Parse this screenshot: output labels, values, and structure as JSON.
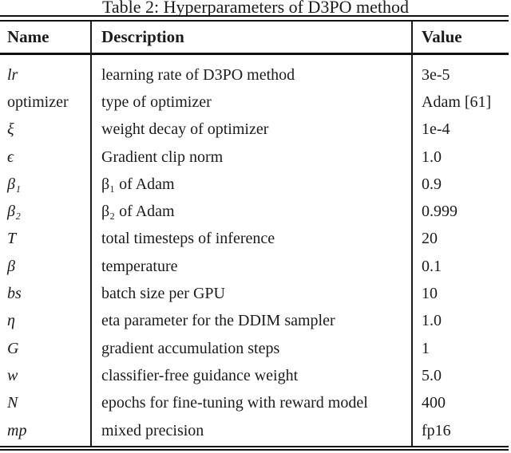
{
  "caption": "Table 2: Hyperparameters of D3PO method",
  "table": {
    "headers": [
      "Name",
      "Description",
      "Value"
    ],
    "rows": [
      {
        "name": "lr",
        "math": true,
        "description": "learning rate of D3PO method",
        "value": "3e-5"
      },
      {
        "name": "optimizer",
        "math": false,
        "description": "type of optimizer",
        "value": "Adam [61]"
      },
      {
        "name": "ξ",
        "math": true,
        "description": "weight decay of optimizer",
        "value": "1e-4"
      },
      {
        "name": "ϵ",
        "math": true,
        "description": "Gradient clip norm",
        "value": "1.0"
      },
      {
        "name": "β₁",
        "math": true,
        "description": "β₁ of Adam",
        "value": "0.9"
      },
      {
        "name": "β₂",
        "math": true,
        "description": "β₂ of Adam",
        "value": "0.999"
      },
      {
        "name": "T",
        "math": true,
        "description": "total timesteps of inference",
        "value": "20"
      },
      {
        "name": "β",
        "math": true,
        "description": "temperature",
        "value": "0.1"
      },
      {
        "name": "bs",
        "math": true,
        "description": "batch size per GPU",
        "value": "10"
      },
      {
        "name": "η",
        "math": true,
        "description": "eta parameter for the DDIM sampler",
        "value": "1.0"
      },
      {
        "name": "G",
        "math": true,
        "description": "gradient accumulation steps",
        "value": "1"
      },
      {
        "name": "w",
        "math": true,
        "description": "classifier-free guidance weight",
        "value": "5.0"
      },
      {
        "name": "N",
        "math": true,
        "description": "epochs for fine-tuning with reward model",
        "value": "400"
      },
      {
        "name": "mp",
        "math": true,
        "description": "mixed precision",
        "value": "fp16"
      }
    ]
  },
  "colors": {
    "text": "#1b1b1b",
    "rule": "#101010",
    "background": "#ffffff"
  }
}
